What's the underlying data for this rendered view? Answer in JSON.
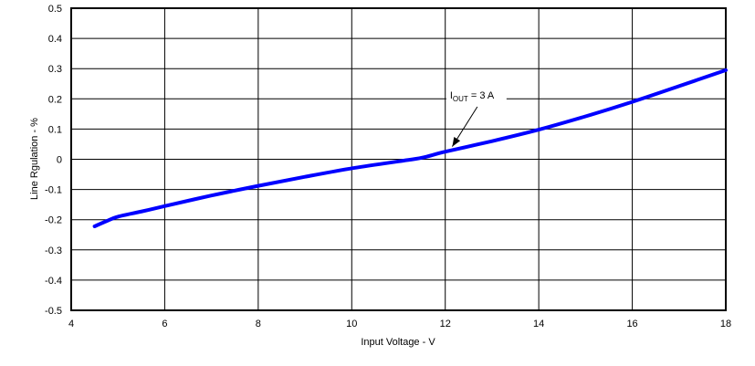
{
  "chart_data": {
    "type": "line",
    "title": "",
    "xlabel": "Input Voltage - V",
    "ylabel": "Line Rgulation - %",
    "xlim": [
      4,
      18
    ],
    "ylim": [
      -0.5,
      0.5
    ],
    "xticks": [
      4,
      6,
      8,
      10,
      12,
      14,
      16,
      18
    ],
    "yticks": [
      -0.5,
      -0.4,
      -0.3,
      -0.2,
      -0.1,
      0,
      0.1,
      0.2,
      0.3,
      0.4,
      0.5
    ],
    "ytick_labels": [
      "-0.5",
      "-0.4",
      "-0.3",
      "-0.2",
      "-0.1",
      "0",
      "0.1",
      "0.2",
      "0.3",
      "0.4",
      "0.5"
    ],
    "xtick_labels": [
      "4",
      "6",
      "8",
      "10",
      "12",
      "14",
      "16",
      "18"
    ],
    "grid": true,
    "legend": null,
    "series": [
      {
        "name": "IOUT = 3 A",
        "color": "#0000ff",
        "x": [
          4.5,
          4.75,
          5.0,
          5.5,
          6.0,
          7.0,
          8.0,
          9.0,
          10.0,
          11.0,
          11.5,
          12.0,
          13.0,
          14.0,
          15.0,
          16.0,
          17.0,
          18.0
        ],
        "y": [
          -0.222,
          -0.205,
          -0.19,
          -0.173,
          -0.155,
          -0.12,
          -0.088,
          -0.058,
          -0.03,
          -0.007,
          0.005,
          0.025,
          0.06,
          0.098,
          0.142,
          0.19,
          0.242,
          0.295
        ]
      }
    ],
    "annotations": [
      {
        "text_main": "I",
        "text_sub": "OUT",
        "text_rest": " = 3 A",
        "label_x": 12.1,
        "label_y": 0.21,
        "arrow_to_x": 12.15,
        "arrow_to_y": 0.03
      }
    ]
  },
  "colors": {
    "line": "#0000ff",
    "grid": "#000000",
    "background": "#ffffff"
  }
}
